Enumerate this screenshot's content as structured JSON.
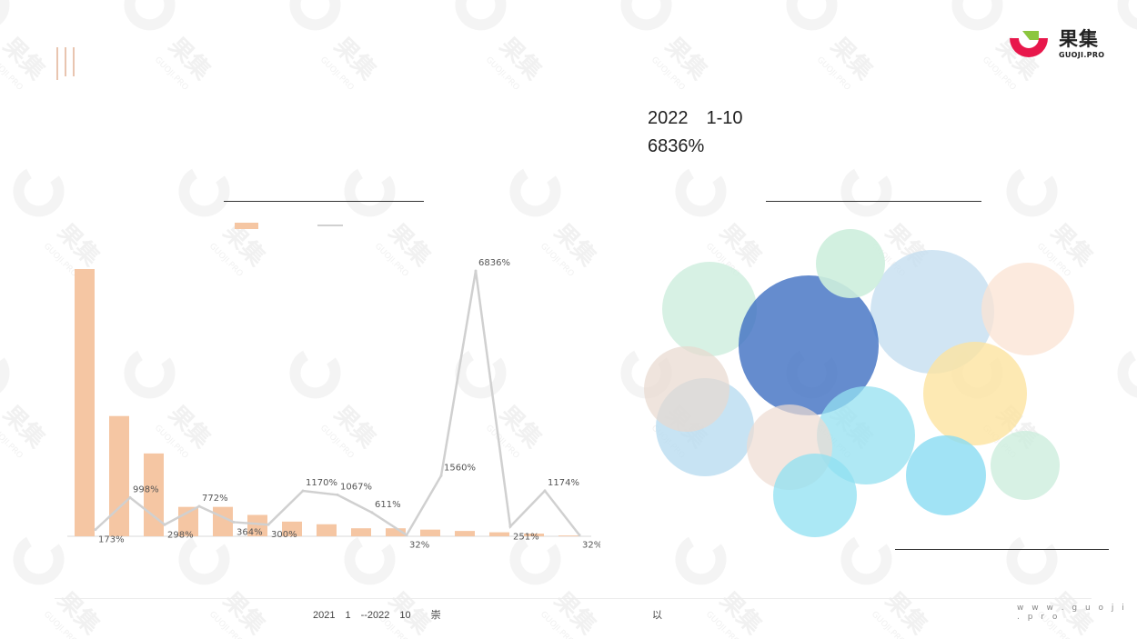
{
  "brand": {
    "name": "果集",
    "sub": "GUOJI.PRO",
    "url": "w w w . g u o j i . p r o",
    "watermark": "果集",
    "watermark_sub": "GUOJI.PRO"
  },
  "headline": {
    "line1": "2022　1-10",
    "line2": "6836%"
  },
  "footer": {
    "source": "2021　1　--2022　10　　崇",
    "note": "以"
  },
  "colors": {
    "bar": "#f5c6a3",
    "line": "#d0d0d0",
    "accent": "#e8174b",
    "green": "#8cc63f"
  },
  "chart_data": {
    "type": "bar",
    "title": "",
    "xlabel": "",
    "ylabel": "",
    "categories": [
      "",
      "",
      "",
      "",
      "",
      "",
      "",
      "",
      "",
      "",
      "",
      "",
      "",
      "",
      ""
    ],
    "series": [
      {
        "type": "bar",
        "values": [
          100,
          45,
          31,
          11,
          11,
          8,
          5.5,
          4.5,
          3,
          3,
          2.5,
          2,
          1.5,
          1,
          0.3
        ]
      },
      {
        "type": "line",
        "values": [
          173,
          998,
          298,
          772,
          364,
          300,
          1170,
          1067,
          611,
          32,
          1560,
          6836,
          251,
          1174,
          32
        ],
        "labels": [
          "173%",
          "998%",
          "298%",
          "772%",
          "364%",
          "300%",
          "1170%",
          "1067%",
          "611%",
          "32%",
          "1560%",
          "6836%",
          "251%",
          "1174%",
          "32%"
        ]
      }
    ]
  },
  "bubbles": [
    {
      "color": "#cdeedd",
      "alpha": 0.8
    },
    {
      "color": "#c6dff0",
      "alpha": 0.8
    },
    {
      "color": "#b9dcf0",
      "alpha": 0.8
    },
    {
      "color": "#fbe3d3",
      "alpha": 0.75
    },
    {
      "color": "#3f6fc2",
      "alpha": 0.8
    },
    {
      "color": "#cdeedd",
      "alpha": 0.9
    },
    {
      "color": "#e8d8cf",
      "alpha": 0.7
    },
    {
      "color": "#fde4a0",
      "alpha": 0.8
    },
    {
      "color": "#94e0f0",
      "alpha": 0.75
    },
    {
      "color": "#eedbd1",
      "alpha": 0.7
    },
    {
      "color": "#8fe0f2",
      "alpha": 0.75
    },
    {
      "color": "#89dcf2",
      "alpha": 0.8
    },
    {
      "color": "#cdeedd",
      "alpha": 0.8
    },
    {
      "color": "#fbe3d3",
      "alpha": 0.75
    }
  ]
}
